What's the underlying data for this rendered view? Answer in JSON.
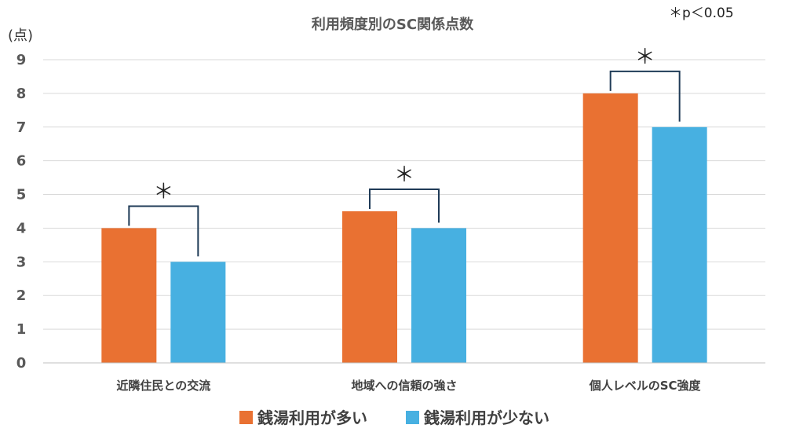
{
  "chart_data": {
    "type": "bar",
    "title": "利用頻度別のSC関係点数",
    "ylabel": "(点)",
    "note": "＊p＜0.05",
    "significance_marker": "＊",
    "ylim": [
      0,
      9
    ],
    "yticks": [
      "0",
      "1",
      "2",
      "3",
      "4",
      "5",
      "6",
      "7",
      "8",
      "9"
    ],
    "categories": [
      "近隣住民との交流",
      "地域への信頼の強さ",
      "個人レベルのSC強度"
    ],
    "series": [
      {
        "name": "銭湯利用が多い",
        "values": [
          4,
          4.5,
          8
        ],
        "color": "#E97132"
      },
      {
        "name": "銭湯利用が少ない",
        "values": [
          3,
          4,
          7
        ],
        "color": "#47B0E1"
      }
    ],
    "significant": [
      true,
      true,
      true
    ],
    "grid": true,
    "legend_position": "bottom"
  }
}
